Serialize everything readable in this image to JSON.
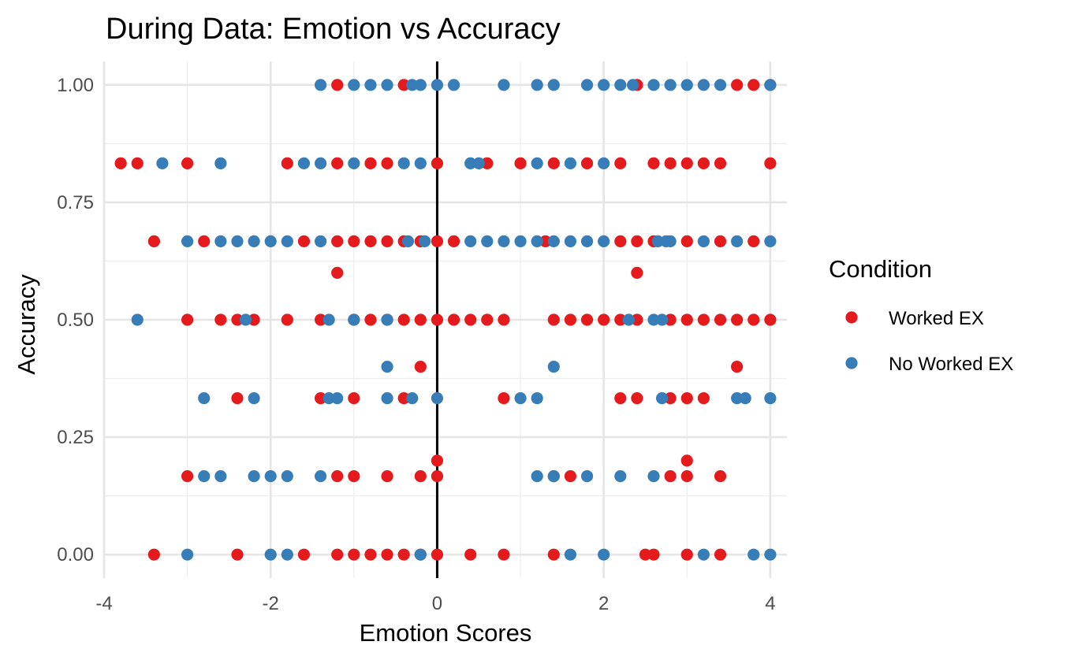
{
  "chart_data": {
    "type": "scatter",
    "title": "During Data: Emotion vs Accuracy",
    "xlabel": "Emotion Scores",
    "ylabel": "Accuracy",
    "xlim": [
      -4.0,
      4.2
    ],
    "ylim": [
      -0.05,
      1.05
    ],
    "x_ticks": [
      -4,
      -2,
      0,
      2,
      4
    ],
    "x_tick_labels": [
      "-4",
      "-2",
      "0",
      "2",
      "4"
    ],
    "y_ticks": [
      0,
      0.25,
      0.5,
      0.75,
      1.0
    ],
    "y_tick_labels": [
      "0.00",
      "0.25",
      "0.50",
      "0.75",
      "1.00"
    ],
    "reference_line": {
      "x": 0,
      "color": "#000000"
    },
    "grid": true,
    "legend": {
      "title": "Condition",
      "position": "right"
    },
    "series": [
      {
        "name": "Worked EX",
        "color": "#e41a1c",
        "points": [
          {
            "x": -1.2,
            "y": 1.0
          },
          {
            "x": -0.4,
            "y": 1.0
          },
          {
            "x": 2.4,
            "y": 1.0
          },
          {
            "x": 3.6,
            "y": 1.0
          },
          {
            "x": 3.8,
            "y": 1.0
          },
          {
            "x": 4.0,
            "y": 1.0
          },
          {
            "x": -3.8,
            "y": 0.833
          },
          {
            "x": -3.6,
            "y": 0.833
          },
          {
            "x": -3.0,
            "y": 0.833
          },
          {
            "x": -1.8,
            "y": 0.833
          },
          {
            "x": -1.2,
            "y": 0.833
          },
          {
            "x": -0.8,
            "y": 0.833
          },
          {
            "x": -0.6,
            "y": 0.833
          },
          {
            "x": 0.0,
            "y": 0.833
          },
          {
            "x": 0.6,
            "y": 0.833
          },
          {
            "x": 1.0,
            "y": 0.833
          },
          {
            "x": 1.4,
            "y": 0.833
          },
          {
            "x": 1.8,
            "y": 0.833
          },
          {
            "x": 2.2,
            "y": 0.833
          },
          {
            "x": 2.6,
            "y": 0.833
          },
          {
            "x": 2.8,
            "y": 0.833
          },
          {
            "x": 3.0,
            "y": 0.833
          },
          {
            "x": 3.2,
            "y": 0.833
          },
          {
            "x": 3.4,
            "y": 0.833
          },
          {
            "x": 4.0,
            "y": 0.833
          },
          {
            "x": -3.4,
            "y": 0.667
          },
          {
            "x": -2.8,
            "y": 0.667
          },
          {
            "x": -1.6,
            "y": 0.667
          },
          {
            "x": -1.2,
            "y": 0.667
          },
          {
            "x": -1.0,
            "y": 0.667
          },
          {
            "x": -0.8,
            "y": 0.667
          },
          {
            "x": -0.6,
            "y": 0.667
          },
          {
            "x": -0.4,
            "y": 0.667
          },
          {
            "x": -0.2,
            "y": 0.667
          },
          {
            "x": 0.0,
            "y": 0.667
          },
          {
            "x": 0.2,
            "y": 0.667
          },
          {
            "x": 1.3,
            "y": 0.667
          },
          {
            "x": 2.2,
            "y": 0.667
          },
          {
            "x": 2.4,
            "y": 0.667
          },
          {
            "x": 2.6,
            "y": 0.667
          },
          {
            "x": 3.0,
            "y": 0.667
          },
          {
            "x": 3.4,
            "y": 0.667
          },
          {
            "x": 3.8,
            "y": 0.667
          },
          {
            "x": -1.2,
            "y": 0.6
          },
          {
            "x": 2.4,
            "y": 0.6
          },
          {
            "x": -3.0,
            "y": 0.5
          },
          {
            "x": -2.6,
            "y": 0.5
          },
          {
            "x": -2.4,
            "y": 0.5
          },
          {
            "x": -2.2,
            "y": 0.5
          },
          {
            "x": -1.8,
            "y": 0.5
          },
          {
            "x": -1.4,
            "y": 0.5
          },
          {
            "x": -1.0,
            "y": 0.5
          },
          {
            "x": -0.8,
            "y": 0.5
          },
          {
            "x": -0.6,
            "y": 0.5
          },
          {
            "x": -0.4,
            "y": 0.5
          },
          {
            "x": -0.2,
            "y": 0.5
          },
          {
            "x": 0.0,
            "y": 0.5
          },
          {
            "x": 0.2,
            "y": 0.5
          },
          {
            "x": 0.4,
            "y": 0.5
          },
          {
            "x": 0.6,
            "y": 0.5
          },
          {
            "x": 0.8,
            "y": 0.5
          },
          {
            "x": 1.4,
            "y": 0.5
          },
          {
            "x": 1.6,
            "y": 0.5
          },
          {
            "x": 1.8,
            "y": 0.5
          },
          {
            "x": 2.0,
            "y": 0.5
          },
          {
            "x": 2.2,
            "y": 0.5
          },
          {
            "x": 2.4,
            "y": 0.5
          },
          {
            "x": 2.8,
            "y": 0.5
          },
          {
            "x": 3.0,
            "y": 0.5
          },
          {
            "x": 3.2,
            "y": 0.5
          },
          {
            "x": 3.4,
            "y": 0.5
          },
          {
            "x": 3.6,
            "y": 0.5
          },
          {
            "x": 3.8,
            "y": 0.5
          },
          {
            "x": 4.0,
            "y": 0.5
          },
          {
            "x": -0.2,
            "y": 0.4
          },
          {
            "x": 3.6,
            "y": 0.4
          },
          {
            "x": -2.4,
            "y": 0.333
          },
          {
            "x": -1.4,
            "y": 0.333
          },
          {
            "x": -1.0,
            "y": 0.333
          },
          {
            "x": -0.4,
            "y": 0.333
          },
          {
            "x": 0.8,
            "y": 0.333
          },
          {
            "x": 2.2,
            "y": 0.333
          },
          {
            "x": 2.4,
            "y": 0.333
          },
          {
            "x": 2.8,
            "y": 0.333
          },
          {
            "x": 3.0,
            "y": 0.333
          },
          {
            "x": 3.2,
            "y": 0.333
          },
          {
            "x": 0.0,
            "y": 0.2
          },
          {
            "x": 3.0,
            "y": 0.2
          },
          {
            "x": -3.0,
            "y": 0.167
          },
          {
            "x": -1.2,
            "y": 0.167
          },
          {
            "x": -1.0,
            "y": 0.167
          },
          {
            "x": -0.6,
            "y": 0.167
          },
          {
            "x": -0.2,
            "y": 0.167
          },
          {
            "x": 0.0,
            "y": 0.167
          },
          {
            "x": 1.4,
            "y": 0.167
          },
          {
            "x": 1.6,
            "y": 0.167
          },
          {
            "x": 2.8,
            "y": 0.167
          },
          {
            "x": 3.0,
            "y": 0.167
          },
          {
            "x": 3.4,
            "y": 0.167
          },
          {
            "x": -3.4,
            "y": 0.0
          },
          {
            "x": -2.4,
            "y": 0.0
          },
          {
            "x": -1.6,
            "y": 0.0
          },
          {
            "x": -1.2,
            "y": 0.0
          },
          {
            "x": -1.0,
            "y": 0.0
          },
          {
            "x": -0.8,
            "y": 0.0
          },
          {
            "x": -0.6,
            "y": 0.0
          },
          {
            "x": -0.4,
            "y": 0.0
          },
          {
            "x": -0.2,
            "y": 0.0
          },
          {
            "x": 0.0,
            "y": 0.0
          },
          {
            "x": 0.4,
            "y": 0.0
          },
          {
            "x": 0.8,
            "y": 0.0
          },
          {
            "x": 1.4,
            "y": 0.0
          },
          {
            "x": 2.5,
            "y": 0.0
          },
          {
            "x": 2.6,
            "y": 0.0
          },
          {
            "x": 3.0,
            "y": 0.0
          },
          {
            "x": 3.4,
            "y": 0.0
          }
        ]
      },
      {
        "name": "No Worked EX",
        "color": "#377eb8",
        "points": [
          {
            "x": -1.4,
            "y": 1.0
          },
          {
            "x": -1.0,
            "y": 1.0
          },
          {
            "x": -0.8,
            "y": 1.0
          },
          {
            "x": -0.6,
            "y": 1.0
          },
          {
            "x": -0.3,
            "y": 1.0
          },
          {
            "x": -0.2,
            "y": 1.0
          },
          {
            "x": 0.0,
            "y": 1.0
          },
          {
            "x": 0.2,
            "y": 1.0
          },
          {
            "x": 0.8,
            "y": 1.0
          },
          {
            "x": 1.2,
            "y": 1.0
          },
          {
            "x": 1.4,
            "y": 1.0
          },
          {
            "x": 1.8,
            "y": 1.0
          },
          {
            "x": 2.0,
            "y": 1.0
          },
          {
            "x": 2.2,
            "y": 1.0
          },
          {
            "x": 2.35,
            "y": 1.0
          },
          {
            "x": 2.6,
            "y": 1.0
          },
          {
            "x": 2.8,
            "y": 1.0
          },
          {
            "x": 3.0,
            "y": 1.0
          },
          {
            "x": 3.2,
            "y": 1.0
          },
          {
            "x": 3.4,
            "y": 1.0
          },
          {
            "x": 4.0,
            "y": 1.0
          },
          {
            "x": -3.3,
            "y": 0.833
          },
          {
            "x": -2.6,
            "y": 0.833
          },
          {
            "x": -1.6,
            "y": 0.833
          },
          {
            "x": -1.4,
            "y": 0.833
          },
          {
            "x": -1.0,
            "y": 0.833
          },
          {
            "x": -0.4,
            "y": 0.833
          },
          {
            "x": -0.2,
            "y": 0.833
          },
          {
            "x": 0.4,
            "y": 0.833
          },
          {
            "x": 0.5,
            "y": 0.833
          },
          {
            "x": 1.2,
            "y": 0.833
          },
          {
            "x": 1.6,
            "y": 0.833
          },
          {
            "x": 2.0,
            "y": 0.833
          },
          {
            "x": -3.0,
            "y": 0.667
          },
          {
            "x": -2.6,
            "y": 0.667
          },
          {
            "x": -2.4,
            "y": 0.667
          },
          {
            "x": -2.2,
            "y": 0.667
          },
          {
            "x": -2.0,
            "y": 0.667
          },
          {
            "x": -1.8,
            "y": 0.667
          },
          {
            "x": -1.4,
            "y": 0.667
          },
          {
            "x": -0.35,
            "y": 0.667
          },
          {
            "x": -0.15,
            "y": 0.667
          },
          {
            "x": 0.4,
            "y": 0.667
          },
          {
            "x": 0.6,
            "y": 0.667
          },
          {
            "x": 0.8,
            "y": 0.667
          },
          {
            "x": 1.0,
            "y": 0.667
          },
          {
            "x": 1.2,
            "y": 0.667
          },
          {
            "x": 1.4,
            "y": 0.667
          },
          {
            "x": 1.6,
            "y": 0.667
          },
          {
            "x": 1.8,
            "y": 0.667
          },
          {
            "x": 2.0,
            "y": 0.667
          },
          {
            "x": 2.65,
            "y": 0.667
          },
          {
            "x": 2.75,
            "y": 0.667
          },
          {
            "x": 2.8,
            "y": 0.667
          },
          {
            "x": 3.2,
            "y": 0.667
          },
          {
            "x": 3.6,
            "y": 0.667
          },
          {
            "x": 4.0,
            "y": 0.667
          },
          {
            "x": -3.6,
            "y": 0.5
          },
          {
            "x": -2.3,
            "y": 0.5
          },
          {
            "x": -1.3,
            "y": 0.5
          },
          {
            "x": -1.0,
            "y": 0.5
          },
          {
            "x": -0.6,
            "y": 0.5
          },
          {
            "x": 2.3,
            "y": 0.5
          },
          {
            "x": 2.6,
            "y": 0.5
          },
          {
            "x": 2.7,
            "y": 0.5
          },
          {
            "x": -0.6,
            "y": 0.4
          },
          {
            "x": 1.4,
            "y": 0.4
          },
          {
            "x": -2.8,
            "y": 0.333
          },
          {
            "x": -2.2,
            "y": 0.333
          },
          {
            "x": -1.3,
            "y": 0.333
          },
          {
            "x": -1.2,
            "y": 0.333
          },
          {
            "x": -0.6,
            "y": 0.333
          },
          {
            "x": -0.3,
            "y": 0.333
          },
          {
            "x": 0.0,
            "y": 0.333
          },
          {
            "x": 1.0,
            "y": 0.333
          },
          {
            "x": 1.2,
            "y": 0.333
          },
          {
            "x": 2.7,
            "y": 0.333
          },
          {
            "x": 3.6,
            "y": 0.333
          },
          {
            "x": 3.7,
            "y": 0.333
          },
          {
            "x": 4.0,
            "y": 0.333
          },
          {
            "x": -2.8,
            "y": 0.167
          },
          {
            "x": -2.6,
            "y": 0.167
          },
          {
            "x": -2.2,
            "y": 0.167
          },
          {
            "x": -2.0,
            "y": 0.167
          },
          {
            "x": -1.8,
            "y": 0.167
          },
          {
            "x": -1.4,
            "y": 0.167
          },
          {
            "x": 1.2,
            "y": 0.167
          },
          {
            "x": 1.4,
            "y": 0.167
          },
          {
            "x": 1.8,
            "y": 0.167
          },
          {
            "x": 2.2,
            "y": 0.167
          },
          {
            "x": 2.6,
            "y": 0.167
          },
          {
            "x": -3.0,
            "y": 0.0
          },
          {
            "x": -2.0,
            "y": 0.0
          },
          {
            "x": -1.8,
            "y": 0.0
          },
          {
            "x": -0.2,
            "y": 0.0
          },
          {
            "x": 1.6,
            "y": 0.0
          },
          {
            "x": 2.0,
            "y": 0.0
          },
          {
            "x": 3.2,
            "y": 0.0
          },
          {
            "x": 3.8,
            "y": 0.0
          },
          {
            "x": 4.0,
            "y": 0.0
          }
        ]
      }
    ]
  }
}
